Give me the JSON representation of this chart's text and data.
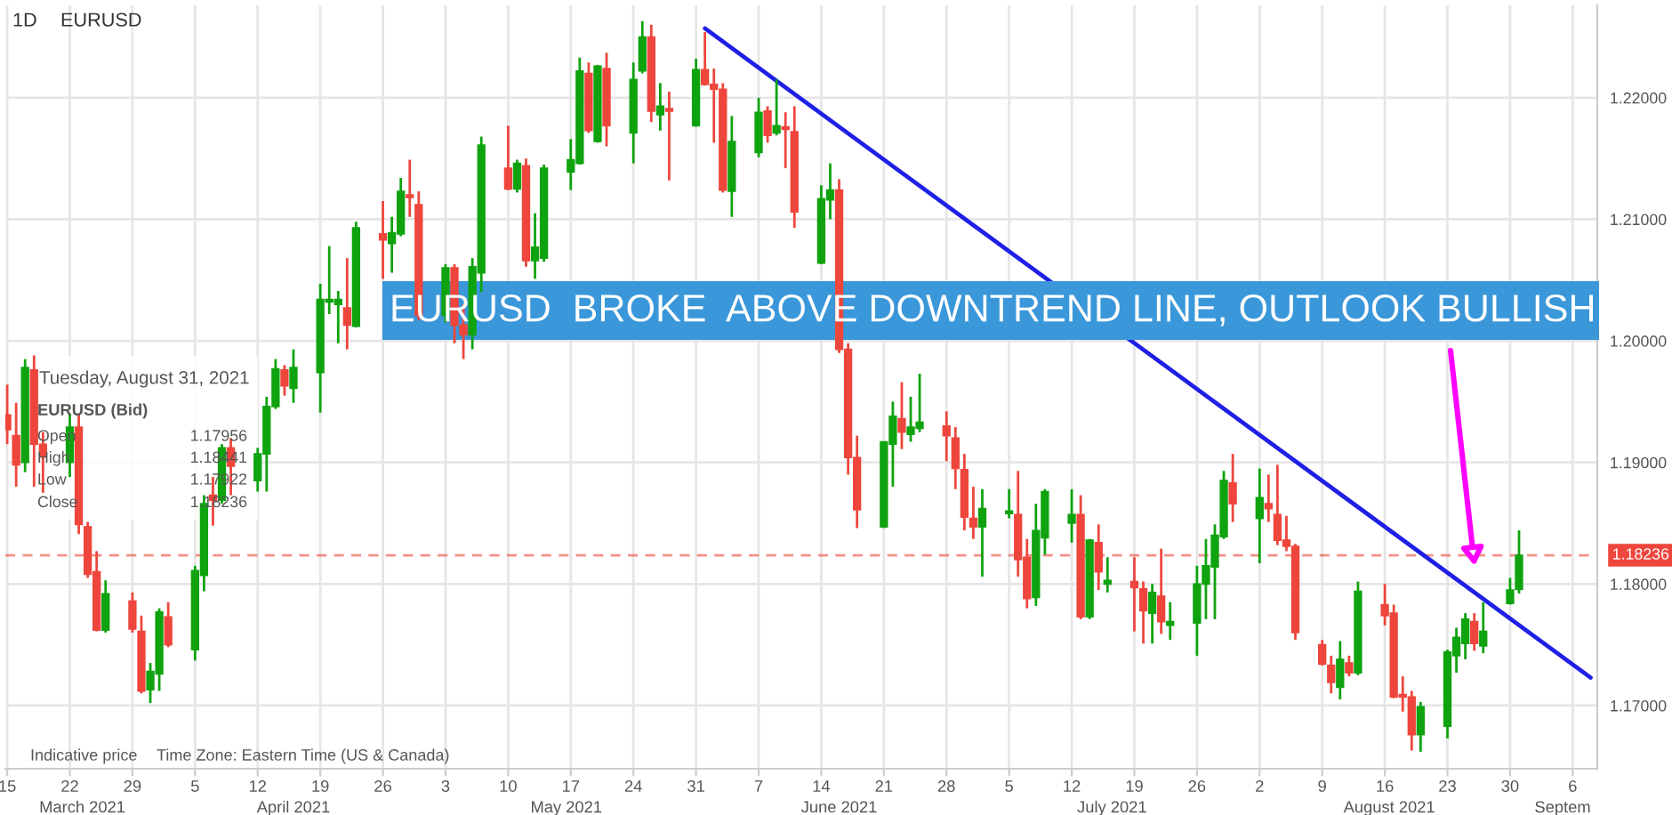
{
  "chart_data": {
    "type": "candlestick",
    "title": "EURUSD  BROKE  ABOVE DOWNTREND LINE, OUTLOOK BULLISH",
    "x": [
      "2021-03-15",
      "2021-03-16",
      "2021-03-17",
      "2021-03-18",
      "2021-03-19",
      "2021-03-22",
      "2021-03-23",
      "2021-03-24",
      "2021-03-25",
      "2021-03-26",
      "2021-03-29",
      "2021-03-30",
      "2021-03-31",
      "2021-04-01",
      "2021-04-02",
      "2021-04-05",
      "2021-04-06",
      "2021-04-07",
      "2021-04-08",
      "2021-04-09",
      "2021-04-12",
      "2021-04-13",
      "2021-04-14",
      "2021-04-15",
      "2021-04-16",
      "2021-04-19",
      "2021-04-20",
      "2021-04-21",
      "2021-04-22",
      "2021-04-23",
      "2021-04-26",
      "2021-04-27",
      "2021-04-28",
      "2021-04-29",
      "2021-04-30",
      "2021-05-03",
      "2021-05-04",
      "2021-05-05",
      "2021-05-06",
      "2021-05-07",
      "2021-05-10",
      "2021-05-11",
      "2021-05-12",
      "2021-05-13",
      "2021-05-14",
      "2021-05-17",
      "2021-05-18",
      "2021-05-19",
      "2021-05-20",
      "2021-05-21",
      "2021-05-24",
      "2021-05-25",
      "2021-05-26",
      "2021-05-27",
      "2021-05-28",
      "2021-05-31",
      "2021-06-01",
      "2021-06-02",
      "2021-06-03",
      "2021-06-04",
      "2021-06-07",
      "2021-06-08",
      "2021-06-09",
      "2021-06-10",
      "2021-06-11",
      "2021-06-14",
      "2021-06-15",
      "2021-06-16",
      "2021-06-17",
      "2021-06-18",
      "2021-06-21",
      "2021-06-22",
      "2021-06-23",
      "2021-06-24",
      "2021-06-25",
      "2021-06-28",
      "2021-06-29",
      "2021-06-30",
      "2021-07-01",
      "2021-07-02",
      "2021-07-05",
      "2021-07-06",
      "2021-07-07",
      "2021-07-08",
      "2021-07-09",
      "2021-07-12",
      "2021-07-13",
      "2021-07-14",
      "2021-07-15",
      "2021-07-16",
      "2021-07-19",
      "2021-07-20",
      "2021-07-21",
      "2021-07-22",
      "2021-07-23",
      "2021-07-26",
      "2021-07-27",
      "2021-07-28",
      "2021-07-29",
      "2021-07-30",
      "2021-08-02",
      "2021-08-03",
      "2021-08-04",
      "2021-08-05",
      "2021-08-06",
      "2021-08-09",
      "2021-08-10",
      "2021-08-11",
      "2021-08-12",
      "2021-08-13",
      "2021-08-16",
      "2021-08-17",
      "2021-08-18",
      "2021-08-19",
      "2021-08-20",
      "2021-08-23",
      "2021-08-24",
      "2021-08-25",
      "2021-08-26",
      "2021-08-27",
      "2021-08-30",
      "2021-08-31"
    ],
    "ohlc": [
      [
        1.1939,
        1.1964,
        1.1915,
        1.1927
      ],
      [
        1.1922,
        1.1949,
        1.188,
        1.1898
      ],
      [
        1.19,
        1.1985,
        1.1892,
        1.1978
      ],
      [
        1.1976,
        1.1988,
        1.188,
        1.1915
      ],
      [
        1.1915,
        1.1925,
        1.1875,
        1.1905
      ],
      [
        1.19,
        1.194,
        1.1888,
        1.1929
      ],
      [
        1.1929,
        1.194,
        1.1841,
        1.1849
      ],
      [
        1.1847,
        1.1851,
        1.1805,
        1.1808
      ],
      [
        1.181,
        1.1827,
        1.1761,
        1.1762
      ],
      [
        1.1762,
        1.1803,
        1.176,
        1.1792
      ],
      [
        1.1786,
        1.1793,
        1.176,
        1.1763
      ],
      [
        1.1761,
        1.1774,
        1.171,
        1.1712
      ],
      [
        1.1713,
        1.1735,
        1.1702,
        1.1728
      ],
      [
        1.1726,
        1.178,
        1.1712,
        1.1777
      ],
      [
        1.1773,
        1.1785,
        1.1748,
        1.175
      ],
      [
        1.1746,
        1.1815,
        1.1737,
        1.1811
      ],
      [
        1.1807,
        1.1873,
        1.1794,
        1.1866
      ],
      [
        1.1873,
        1.1888,
        1.1848,
        1.1869
      ],
      [
        1.1869,
        1.1915,
        1.1866,
        1.1912
      ],
      [
        1.1912,
        1.192,
        1.1873,
        1.1897
      ],
      [
        1.1885,
        1.1912,
        1.1876,
        1.1907
      ],
      [
        1.1907,
        1.1954,
        1.1876,
        1.1946
      ],
      [
        1.1946,
        1.1985,
        1.1944,
        1.1977
      ],
      [
        1.1976,
        1.198,
        1.1955,
        1.1963
      ],
      [
        1.1961,
        1.1993,
        1.1949,
        1.1978
      ],
      [
        1.1974,
        1.2047,
        1.1941,
        1.2034
      ],
      [
        1.2032,
        1.2078,
        1.2022,
        1.2034
      ],
      [
        1.203,
        1.2041,
        1.1998,
        1.2034
      ],
      [
        1.2027,
        1.2068,
        1.1993,
        1.2013
      ],
      [
        1.2012,
        1.2098,
        1.2011,
        1.2093
      ],
      [
        1.2088,
        1.2115,
        1.2051,
        1.2083
      ],
      [
        1.208,
        1.2102,
        1.2056,
        1.2089
      ],
      [
        1.2088,
        1.2134,
        1.2086,
        1.2123
      ],
      [
        1.212,
        1.2149,
        1.2102,
        1.2118
      ],
      [
        1.2112,
        1.2123,
        1.2017,
        1.2021
      ],
      [
        1.2021,
        1.2063,
        1.2015,
        1.206
      ],
      [
        1.206,
        1.2063,
        1.1998,
        1.2013
      ],
      [
        1.2013,
        1.203,
        1.1985,
        1.2005
      ],
      [
        1.2005,
        1.2068,
        1.1993,
        1.2061
      ],
      [
        1.2056,
        1.2168,
        1.204,
        1.2161
      ],
      [
        1.2142,
        1.2177,
        1.2124,
        1.2125
      ],
      [
        1.2125,
        1.2149,
        1.2122,
        1.2146
      ],
      [
        1.2144,
        1.215,
        1.2061,
        1.2066
      ],
      [
        1.2066,
        1.2105,
        1.2051,
        1.2077
      ],
      [
        1.2068,
        1.2145,
        1.2065,
        1.2142
      ],
      [
        1.2139,
        1.2166,
        1.2124,
        1.2149
      ],
      [
        1.2146,
        1.2233,
        1.2145,
        1.2222
      ],
      [
        1.222,
        1.2229,
        1.2171,
        1.2173
      ],
      [
        1.2164,
        1.2227,
        1.2163,
        1.2226
      ],
      [
        1.2224,
        1.2237,
        1.216,
        1.2177
      ],
      [
        1.2171,
        1.2229,
        1.2146,
        1.2215
      ],
      [
        1.2222,
        1.2263,
        1.222,
        1.225
      ],
      [
        1.225,
        1.226,
        1.218,
        1.2189
      ],
      [
        1.2186,
        1.2212,
        1.2173,
        1.2193
      ],
      [
        1.2191,
        1.2205,
        1.2132,
        1.2189
      ],
      [
        1.2177,
        1.2232,
        1.2176,
        1.2223
      ],
      [
        1.2223,
        1.2254,
        1.221,
        1.2211
      ],
      [
        1.2211,
        1.2224,
        1.2163,
        1.2207
      ],
      [
        1.2207,
        1.2212,
        1.2122,
        1.2124
      ],
      [
        1.2123,
        1.2185,
        1.2102,
        1.2164
      ],
      [
        1.2155,
        1.22,
        1.2151,
        1.2188
      ],
      [
        1.2189,
        1.2193,
        1.2163,
        1.2169
      ],
      [
        1.2171,
        1.2215,
        1.2169,
        1.2177
      ],
      [
        1.2176,
        1.2188,
        1.2142,
        1.2174
      ],
      [
        1.2172,
        1.2193,
        1.2093,
        1.2106
      ],
      [
        1.2064,
        1.2128,
        1.2063,
        1.2117
      ],
      [
        1.2116,
        1.2146,
        1.21,
        1.2124
      ],
      [
        1.2124,
        1.2133,
        1.199,
        1.1993
      ],
      [
        1.1993,
        1.1998,
        1.189,
        1.1904
      ],
      [
        1.1904,
        1.1922,
        1.1846,
        1.1861
      ],
      [
        1.1847,
        1.1917,
        1.1846,
        1.1917
      ],
      [
        1.1915,
        1.195,
        1.188,
        1.1938
      ],
      [
        1.1936,
        1.1966,
        1.1911,
        1.1925
      ],
      [
        1.1923,
        1.1954,
        1.1917,
        1.1929
      ],
      [
        1.1928,
        1.1973,
        1.1925,
        1.1933
      ],
      [
        1.193,
        1.1942,
        1.1901,
        1.1922
      ],
      [
        1.192,
        1.1929,
        1.1878,
        1.1895
      ],
      [
        1.1894,
        1.1907,
        1.1844,
        1.1855
      ],
      [
        1.1854,
        1.188,
        1.1837,
        1.1847
      ],
      [
        1.1847,
        1.1878,
        1.1806,
        1.1862
      ],
      [
        1.1858,
        1.1878,
        1.1854,
        1.186
      ],
      [
        1.1857,
        1.1893,
        1.1806,
        1.182
      ],
      [
        1.1822,
        1.1837,
        1.178,
        1.1788
      ],
      [
        1.1789,
        1.1866,
        1.1782,
        1.1844
      ],
      [
        1.1838,
        1.1878,
        1.1824,
        1.1876
      ],
      [
        1.185,
        1.1878,
        1.1834,
        1.1857
      ],
      [
        1.1857,
        1.1873,
        1.1771,
        1.1773
      ],
      [
        1.1773,
        1.1837,
        1.1771,
        1.1836
      ],
      [
        1.1834,
        1.1849,
        1.1795,
        1.181
      ],
      [
        1.18,
        1.1822,
        1.1793,
        1.1803
      ],
      [
        1.1802,
        1.1822,
        1.1761,
        1.1797
      ],
      [
        1.1796,
        1.1802,
        1.1751,
        1.1778
      ],
      [
        1.1776,
        1.18,
        1.1751,
        1.1793
      ],
      [
        1.179,
        1.1829,
        1.1759,
        1.1769
      ],
      [
        1.1766,
        1.1785,
        1.1754,
        1.1769
      ],
      [
        1.1768,
        1.1815,
        1.1741,
        1.18
      ],
      [
        1.18,
        1.1837,
        1.1771,
        1.1815
      ],
      [
        1.1814,
        1.1849,
        1.1771,
        1.184
      ],
      [
        1.1839,
        1.1893,
        1.1837,
        1.1885
      ],
      [
        1.1883,
        1.1907,
        1.1851,
        1.1866
      ],
      [
        1.1854,
        1.1895,
        1.1817,
        1.1871
      ],
      [
        1.1866,
        1.189,
        1.1851,
        1.1862
      ],
      [
        1.1857,
        1.1898,
        1.1832,
        1.1836
      ],
      [
        1.1836,
        1.1856,
        1.1827,
        1.1831
      ],
      [
        1.1831,
        1.1833,
        1.1754,
        1.176
      ],
      [
        1.175,
        1.1754,
        1.1733,
        1.1734
      ],
      [
        1.1733,
        1.1741,
        1.171,
        1.1719
      ],
      [
        1.1715,
        1.1753,
        1.1705,
        1.1738
      ],
      [
        1.1735,
        1.1741,
        1.1724,
        1.1727
      ],
      [
        1.1727,
        1.1802,
        1.1725,
        1.1794
      ],
      [
        1.1783,
        1.18,
        1.1766,
        1.1774
      ],
      [
        1.1776,
        1.1783,
        1.1706,
        1.1707
      ],
      [
        1.1709,
        1.1724,
        1.1695,
        1.1707
      ],
      [
        1.1707,
        1.1712,
        1.1663,
        1.1676
      ],
      [
        1.1676,
        1.1703,
        1.1662,
        1.1699
      ],
      [
        1.1683,
        1.1746,
        1.1673,
        1.1744
      ],
      [
        1.1741,
        1.1764,
        1.1727,
        1.1756
      ],
      [
        1.1751,
        1.1776,
        1.1738,
        1.1771
      ],
      [
        1.1769,
        1.1776,
        1.1745,
        1.1751
      ],
      [
        1.1749,
        1.1785,
        1.1743,
        1.1761
      ],
      [
        1.1784,
        1.1805,
        1.1783,
        1.1795
      ],
      [
        1.17956,
        1.18441,
        1.17922,
        1.18236
      ]
    ],
    "colors": [
      "#ee463c",
      "#ee463c",
      "#0fa30f",
      "#ee463c",
      "#ee463c",
      "#0fa30f",
      "#ee463c",
      "#ee463c",
      "#ee463c",
      "#0fa30f",
      "#ee463c",
      "#ee463c",
      "#0fa30f",
      "#0fa30f",
      "#ee463c",
      "#0fa30f",
      "#0fa30f",
      "#ee463c",
      "#0fa30f",
      "#ee463c",
      "#0fa30f",
      "#0fa30f",
      "#0fa30f",
      "#ee463c",
      "#0fa30f",
      "#0fa30f",
      "#0fa30f",
      "#0fa30f",
      "#ee463c",
      "#0fa30f",
      "#ee463c",
      "#0fa30f",
      "#0fa30f",
      "#ee463c",
      "#ee463c",
      "#0fa30f",
      "#ee463c",
      "#ee463c",
      "#0fa30f",
      "#0fa30f",
      "#ee463c",
      "#0fa30f",
      "#ee463c",
      "#0fa30f",
      "#0fa30f",
      "#0fa30f",
      "#0fa30f",
      "#ee463c",
      "#0fa30f",
      "#ee463c",
      "#0fa30f",
      "#0fa30f",
      "#ee463c",
      "#0fa30f",
      "#ee463c",
      "#0fa30f",
      "#ee463c",
      "#ee463c",
      "#ee463c",
      "#0fa30f",
      "#0fa30f",
      "#ee463c",
      "#0fa30f",
      "#ee463c",
      "#ee463c",
      "#0fa30f",
      "#0fa30f",
      "#ee463c",
      "#ee463c",
      "#ee463c",
      "#0fa30f",
      "#0fa30f",
      "#ee463c",
      "#0fa30f",
      "#0fa30f",
      "#ee463c",
      "#ee463c",
      "#ee463c",
      "#ee463c",
      "#0fa30f",
      "#0fa30f",
      "#ee463c",
      "#ee463c",
      "#0fa30f",
      "#0fa30f",
      "#0fa30f",
      "#ee463c",
      "#0fa30f",
      "#ee463c",
      "#0fa30f",
      "#ee463c",
      "#ee463c",
      "#0fa30f",
      "#ee463c",
      "#0fa30f",
      "#0fa30f",
      "#0fa30f",
      "#0fa30f",
      "#0fa30f",
      "#ee463c",
      "#0fa30f",
      "#ee463c",
      "#ee463c",
      "#ee463c",
      "#ee463c",
      "#ee463c",
      "#ee463c",
      "#0fa30f",
      "#ee463c",
      "#0fa30f",
      "#ee463c",
      "#ee463c",
      "#ee463c",
      "#ee463c",
      "#0fa30f",
      "#0fa30f",
      "#0fa30f",
      "#0fa30f",
      "#ee463c",
      "#0fa30f",
      "#0fa30f",
      "#0fa30f"
    ],
    "series": [
      {
        "type": "line",
        "x": [
          "2021-06-01",
          "2021-09-08"
        ],
        "values": [
          1.2257,
          1.1723
        ],
        "color": "#1f1fe6"
      }
    ],
    "xlim": [
      "2021-03-14T19:00",
      "2021-09-08T18:00"
    ],
    "xticks": [
      {
        "value": "2021-03-15",
        "label": "15"
      },
      {
        "value": "2021-03-22",
        "label": "22"
      },
      {
        "value": "2021-03-29",
        "label": "29"
      },
      {
        "value": "2021-04-05",
        "label": "5"
      },
      {
        "value": "2021-04-12",
        "label": "12"
      },
      {
        "value": "2021-04-19",
        "label": "19"
      },
      {
        "value": "2021-04-26",
        "label": "26"
      },
      {
        "value": "2021-05-03",
        "label": "3"
      },
      {
        "value": "2021-05-10",
        "label": "10"
      },
      {
        "value": "2021-05-17",
        "label": "17"
      },
      {
        "value": "2021-05-24",
        "label": "24"
      },
      {
        "value": "2021-05-31",
        "label": "31"
      },
      {
        "value": "2021-06-07",
        "label": "7"
      },
      {
        "value": "2021-06-14",
        "label": "14"
      },
      {
        "value": "2021-06-21",
        "label": "21"
      },
      {
        "value": "2021-06-28",
        "label": "28"
      },
      {
        "value": "2021-07-05",
        "label": "5"
      },
      {
        "value": "2021-07-12",
        "label": "12"
      },
      {
        "value": "2021-07-19",
        "label": "19"
      },
      {
        "value": "2021-07-26",
        "label": "26"
      },
      {
        "value": "2021-08-02",
        "label": "2"
      },
      {
        "value": "2021-08-09",
        "label": "9"
      },
      {
        "value": "2021-08-16",
        "label": "16"
      },
      {
        "value": "2021-08-23",
        "label": "23"
      },
      {
        "value": "2021-08-30",
        "label": "30"
      },
      {
        "value": "2021-09-06",
        "label": "6"
      }
    ],
    "ylim": [
      1.1648,
      1.2276
    ],
    "yticks": [
      {
        "value": 1.17,
        "label": "1.17000"
      },
      {
        "value": 1.18,
        "label": "1.18000"
      },
      {
        "value": 1.19,
        "label": "1.19000"
      },
      {
        "value": 1.2,
        "label": "1.20000"
      },
      {
        "value": 1.21,
        "label": "1.21000"
      },
      {
        "value": 1.22,
        "label": "1.22000"
      }
    ],
    "grid": true,
    "ref_lines": [
      {
        "axis": "y",
        "value": 1.18236,
        "label": "1.18236",
        "color": "#ee463c",
        "line_style": "dashed"
      }
    ],
    "annotations": [
      "1D",
      "EURUSD",
      "Tuesday, August 31, 2021",
      "EURUSD (Bid)",
      "Open",
      "1.17956",
      "High",
      "1.18441",
      "Low",
      "1.17922",
      "Close",
      "1.18236",
      "Indicative price",
      "Time Zone: Eastern Time (US & Canada)",
      "March 2021",
      "April 2021",
      "May 2021",
      "June 2021",
      "July 2021",
      "August 2021",
      "Septem"
    ]
  }
}
